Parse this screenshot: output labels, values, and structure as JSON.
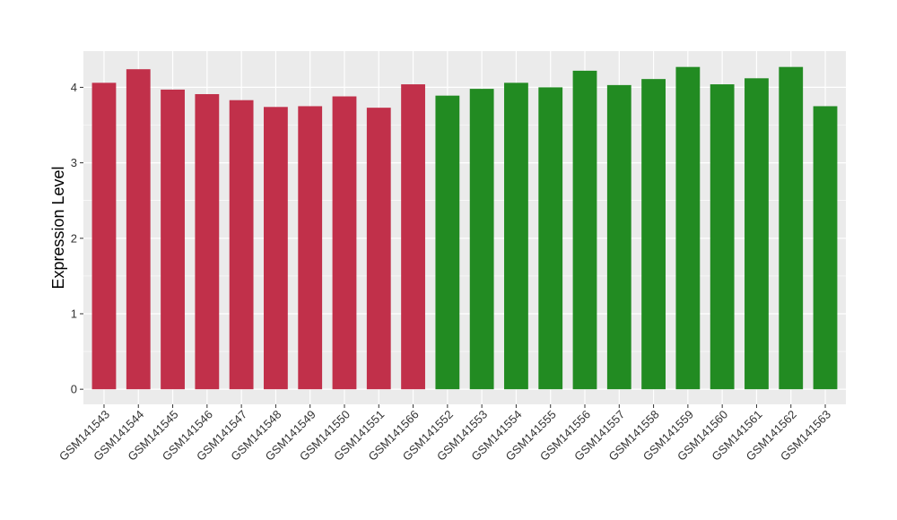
{
  "chart_data": {
    "type": "bar",
    "ylabel": "Expression Level",
    "xlabel": "",
    "ylim": [
      -0.2,
      4.48
    ],
    "yticks": [
      0,
      1,
      2,
      3,
      4
    ],
    "ytick_labels": [
      "0",
      "1",
      "2",
      "3",
      "4"
    ],
    "grid": true,
    "legend": "none",
    "background": "#ebebeb",
    "gridline_color": "#ffffff",
    "categories": [
      "GSM141543",
      "GSM141544",
      "GSM141545",
      "GSM141546",
      "GSM141547",
      "GSM141548",
      "GSM141549",
      "GSM141550",
      "GSM141551",
      "GSM141566",
      "GSM141552",
      "GSM141553",
      "GSM141554",
      "GSM141555",
      "GSM141556",
      "GSM141557",
      "GSM141558",
      "GSM141559",
      "GSM141560",
      "GSM141561",
      "GSM141562",
      "GSM141563"
    ],
    "values": [
      4.06,
      4.24,
      3.97,
      3.91,
      3.83,
      3.74,
      3.75,
      3.88,
      3.73,
      4.04,
      3.89,
      3.98,
      4.06,
      4.0,
      4.22,
      4.03,
      4.11,
      4.27,
      4.04,
      4.12,
      4.27,
      3.75
    ],
    "groups": [
      0,
      0,
      0,
      0,
      0,
      0,
      0,
      0,
      0,
      0,
      1,
      1,
      1,
      1,
      1,
      1,
      1,
      1,
      1,
      1,
      1,
      1
    ],
    "group_colors": [
      "#c1304a",
      "#228b22"
    ]
  }
}
